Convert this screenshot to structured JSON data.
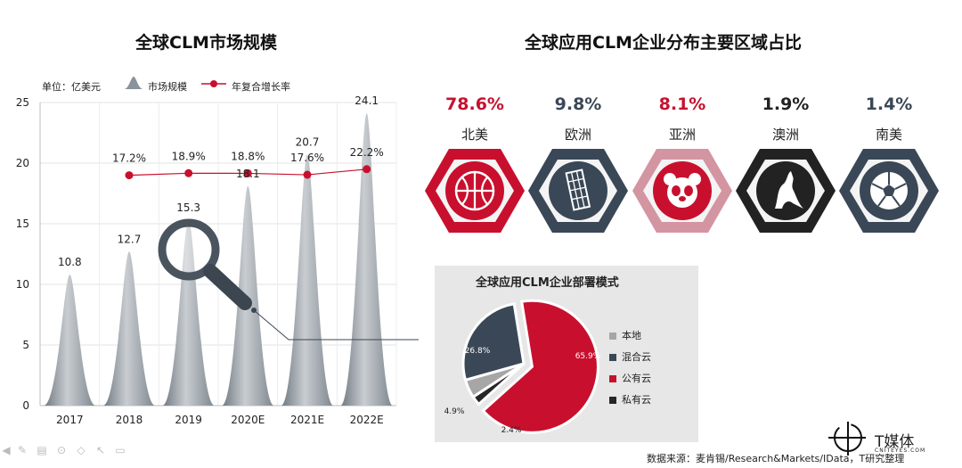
{
  "left": {
    "title": "全球CLM市场规模",
    "unit": "单位：亿美元",
    "legend_market": "市场规模",
    "legend_growth": "年复合增长率"
  },
  "right": {
    "title": "全球应用CLM企业分布主要区域占比",
    "regions": [
      {
        "pct": "78.6%",
        "name": "北美",
        "color": "#c8102e",
        "icon": "basketball-icon"
      },
      {
        "pct": "9.8%",
        "name": "欧洲",
        "color": "#3a4756",
        "icon": "leaning-tower-icon"
      },
      {
        "pct": "8.1%",
        "name": "亚洲",
        "color": "#c8102e",
        "icon": "panda-icon"
      },
      {
        "pct": "1.9%",
        "name": "澳洲",
        "color": "#222222",
        "icon": "kangaroo-icon"
      },
      {
        "pct": "1.4%",
        "name": "南美",
        "color": "#3a4756",
        "icon": "soccer-ball-icon"
      }
    ]
  },
  "pie": {
    "title": "全球应用CLM企业部署模式",
    "legend": [
      "本地",
      "混合云",
      "公有云",
      "私有云"
    ]
  },
  "chart_data": [
    {
      "type": "bar",
      "title": "全球CLM市场规模",
      "categories": [
        "2017",
        "2018",
        "2019",
        "2020E",
        "2021E",
        "2022E"
      ],
      "ylim": [
        0,
        25
      ],
      "yticks": [
        0,
        5,
        10,
        15,
        20,
        25
      ],
      "grid": true,
      "series": [
        {
          "name": "市场规模",
          "values": [
            10.8,
            12.7,
            15.3,
            18.1,
            20.7,
            24.1
          ],
          "labels": [
            "10.8",
            "12.7",
            "15.3",
            "18.1",
            "20.7",
            "24.1"
          ],
          "color": "#8a939b"
        },
        {
          "name": "年复合增长率",
          "type": "line",
          "values": [
            null,
            17.2,
            18.9,
            18.8,
            17.6,
            22.2
          ],
          "labels": [
            "",
            "17.2%",
            "18.9%",
            "18.8%",
            "17.6%",
            "22.2%"
          ],
          "color": "#c8102e"
        }
      ]
    },
    {
      "type": "pie",
      "title": "全球应用CLM企业部署模式",
      "slices": [
        {
          "name": "本地",
          "value": 4.9,
          "label": "4.9%",
          "color": "#a6a6a6"
        },
        {
          "name": "混合云",
          "value": 26.8,
          "label": "26.8%",
          "color": "#3a4756"
        },
        {
          "name": "公有云",
          "value": 65.9,
          "label": "65.9%",
          "color": "#c8102e"
        },
        {
          "name": "私有云",
          "value": 2.4,
          "label": "2.4%",
          "color": "#262626"
        }
      ]
    }
  ],
  "footer": {
    "source": "数据来源：麦肯锡/Research&Markets/IData，T研究整理",
    "logo": "T媒体",
    "logo_sub": "CNITEYES.COM"
  },
  "colors": {
    "accent_red": "#c8102e",
    "slate": "#3a4756",
    "gray": "#8a939b"
  }
}
